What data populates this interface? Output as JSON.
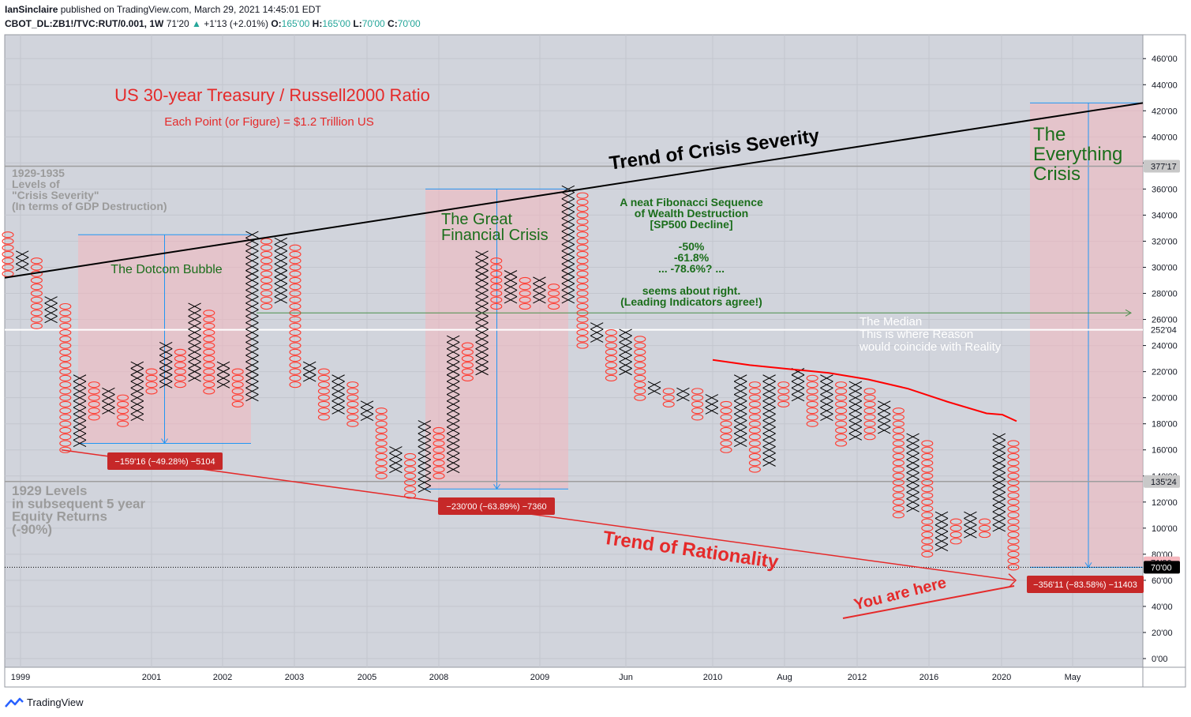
{
  "header": {
    "publisher": "IanSinclaire",
    "published_text": "published on TradingView.com, March 29, 2021 14:45:01 EDT",
    "symbol": "CBOT_DL:ZB1!/TVC:RUT/0.001, 1W",
    "last": "71'20",
    "change_arrow": "▲",
    "change": "+1'13 (+2.01%)",
    "ohlc": [
      {
        "k": "O:",
        "v": "165'00"
      },
      {
        "k": "H:",
        "v": "165'00"
      },
      {
        "k": "L:",
        "v": "70'00"
      },
      {
        "k": "C:",
        "v": "70'00"
      }
    ]
  },
  "footer": {
    "brand": "TradingView",
    "icon": "tradingview-logo-icon"
  },
  "colors": {
    "background": "#d1d4dc",
    "x_mark": "#000000",
    "o_mark": "#ff3b30",
    "highlight": "#f4b6bd",
    "annotation_red": "#e52a2a",
    "annotation_green": "#1b6e1b",
    "annotation_gray": "#9b9b9b",
    "line_blue": "#2196f3"
  },
  "annotations": {
    "title": "US 30-year Treasury / Russell2000 Ratio",
    "subtitle": "Each Point (or Figure) = $1.2 Trillion US",
    "crisis_trend": "Trend of Crisis Severity",
    "rationality_trend": "Trend of Rationality",
    "dotcom": "The Dotcom Bubble",
    "gfc": [
      "The Great",
      "Financial Crisis"
    ],
    "everything": [
      "The",
      "Everything",
      "Crisis"
    ],
    "levels_1929_1935": [
      "1929-1935",
      "Levels of",
      "\"Crisis Severity\"",
      "(In terms of GDP Destruction)"
    ],
    "levels_1929": [
      "1929 Levels",
      "in subsequent 5 year",
      "Equity  Returns",
      "(-90%)"
    ],
    "fib": [
      "A neat Fibonacci Sequence",
      "of Wealth Destruction",
      "[SP500 Decline]",
      "",
      "-50%",
      "-61.8%",
      "... -78.6%? ...",
      "",
      "seems about right.",
      "(Leading Indicators agree!)"
    ],
    "median": [
      "The Median",
      "This is where Reason",
      "would coincide with Reality"
    ],
    "you_are_here": "You are here",
    "measure_1": "−159'16 (−49.28%) −5104",
    "measure_2": "−230'00 (−63.89%) −7360",
    "measure_3": "−356'11 (−83.58%) −11403"
  },
  "chart_data": {
    "type": "point_and_figure",
    "title": "",
    "y_axis": {
      "ticks": [
        "0'00",
        "20'00",
        "40'00",
        "60'00",
        "80'00",
        "100'00",
        "120'00",
        "140'00",
        "160'00",
        "180'00",
        "200'00",
        "220'00",
        "240'00",
        "260'00",
        "280'00",
        "300'00",
        "320'00",
        "340'00",
        "360'00",
        "380'00",
        "400'00",
        "420'00",
        "440'00",
        "460'00"
      ],
      "range": [
        0,
        470
      ]
    },
    "x_axis": {
      "ticks": [
        "1999",
        "2001",
        "2002",
        "2003",
        "2005",
        "2008",
        "2009",
        "Jun",
        "2010",
        "Aug",
        "2012",
        "2016",
        "2020",
        "May"
      ]
    },
    "price_labels": [
      {
        "text": "377'17",
        "value": 377.5
      },
      {
        "text": "252'04",
        "value": 252.1
      },
      {
        "text": "135'24",
        "value": 135.75
      },
      {
        "text": "71'20",
        "value": 71.6
      },
      {
        "text": "70'00",
        "value": 70
      }
    ],
    "box_size": 5,
    "columns": [
      {
        "type": "O",
        "from": 325,
        "to": 295
      },
      {
        "type": "X",
        "from": 300,
        "to": 310
      },
      {
        "type": "O",
        "from": 305,
        "to": 255
      },
      {
        "type": "X",
        "from": 260,
        "to": 275
      },
      {
        "type": "O",
        "from": 270,
        "to": 160
      },
      {
        "type": "X",
        "from": 165,
        "to": 215
      },
      {
        "type": "O",
        "from": 210,
        "to": 185
      },
      {
        "type": "X",
        "from": 190,
        "to": 205
      },
      {
        "type": "O",
        "from": 200,
        "to": 180
      },
      {
        "type": "X",
        "from": 185,
        "to": 225
      },
      {
        "type": "O",
        "from": 220,
        "to": 205
      },
      {
        "type": "X",
        "from": 210,
        "to": 240
      },
      {
        "type": "O",
        "from": 235,
        "to": 210
      },
      {
        "type": "X",
        "from": 215,
        "to": 270
      },
      {
        "type": "O",
        "from": 265,
        "to": 205
      },
      {
        "type": "X",
        "from": 210,
        "to": 225
      },
      {
        "type": "O",
        "from": 220,
        "to": 195
      },
      {
        "type": "X",
        "from": 200,
        "to": 325
      },
      {
        "type": "O",
        "from": 320,
        "to": 270
      },
      {
        "type": "X",
        "from": 275,
        "to": 320
      },
      {
        "type": "O",
        "from": 315,
        "to": 210
      },
      {
        "type": "X",
        "from": 215,
        "to": 225
      },
      {
        "type": "O",
        "from": 220,
        "to": 185
      },
      {
        "type": "X",
        "from": 190,
        "to": 215
      },
      {
        "type": "O",
        "from": 210,
        "to": 180
      },
      {
        "type": "X",
        "from": 185,
        "to": 195
      },
      {
        "type": "O",
        "from": 190,
        "to": 140
      },
      {
        "type": "X",
        "from": 145,
        "to": 160
      },
      {
        "type": "O",
        "from": 155,
        "to": 125
      },
      {
        "type": "X",
        "from": 130,
        "to": 180
      },
      {
        "type": "O",
        "from": 175,
        "to": 140
      },
      {
        "type": "X",
        "from": 145,
        "to": 245
      },
      {
        "type": "O",
        "from": 240,
        "to": 215
      },
      {
        "type": "X",
        "from": 220,
        "to": 310
      },
      {
        "type": "O",
        "from": 305,
        "to": 270
      },
      {
        "type": "X",
        "from": 275,
        "to": 295
      },
      {
        "type": "O",
        "from": 290,
        "to": 270
      },
      {
        "type": "X",
        "from": 275,
        "to": 290
      },
      {
        "type": "O",
        "from": 285,
        "to": 270
      },
      {
        "type": "X",
        "from": 275,
        "to": 360
      },
      {
        "type": "O",
        "from": 355,
        "to": 240
      },
      {
        "type": "X",
        "from": 245,
        "to": 255
      },
      {
        "type": "O",
        "from": 250,
        "to": 215
      },
      {
        "type": "X",
        "from": 220,
        "to": 250
      },
      {
        "type": "O",
        "from": 245,
        "to": 200
      },
      {
        "type": "X",
        "from": 205,
        "to": 210
      },
      {
        "type": "O",
        "from": 205,
        "to": 195
      },
      {
        "type": "X",
        "from": 200,
        "to": 205
      },
      {
        "type": "O",
        "from": 205,
        "to": 185
      },
      {
        "type": "X",
        "from": 190,
        "to": 200
      },
      {
        "type": "O",
        "from": 195,
        "to": 160
      },
      {
        "type": "X",
        "from": 165,
        "to": 215
      },
      {
        "type": "O",
        "from": 210,
        "to": 145
      },
      {
        "type": "X",
        "from": 150,
        "to": 215
      },
      {
        "type": "O",
        "from": 210,
        "to": 195
      },
      {
        "type": "X",
        "from": 200,
        "to": 220
      },
      {
        "type": "O",
        "from": 215,
        "to": 180
      },
      {
        "type": "X",
        "from": 185,
        "to": 215
      },
      {
        "type": "O",
        "from": 210,
        "to": 165
      },
      {
        "type": "X",
        "from": 170,
        "to": 210
      },
      {
        "type": "O",
        "from": 205,
        "to": 170
      },
      {
        "type": "X",
        "from": 175,
        "to": 195
      },
      {
        "type": "O",
        "from": 190,
        "to": 110
      },
      {
        "type": "X",
        "from": 115,
        "to": 170
      },
      {
        "type": "O",
        "from": 165,
        "to": 80
      },
      {
        "type": "X",
        "from": 85,
        "to": 110
      },
      {
        "type": "O",
        "from": 105,
        "to": 90
      },
      {
        "type": "X",
        "from": 95,
        "to": 110
      },
      {
        "type": "O",
        "from": 105,
        "to": 95
      },
      {
        "type": "X",
        "from": 100,
        "to": 170
      },
      {
        "type": "O",
        "from": 165,
        "to": 70
      }
    ]
  }
}
